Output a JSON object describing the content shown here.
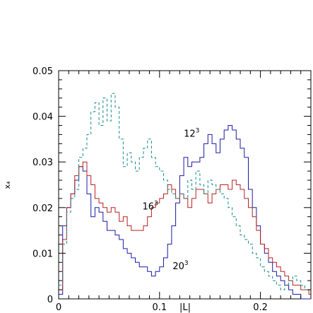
{
  "chart_data": {
    "type": "line",
    "step": true,
    "xlabel": "|L|",
    "ylabel": "x₄",
    "xlim": [
      0,
      0.25
    ],
    "ylim": [
      0,
      0.05
    ],
    "x_ticks": [
      {
        "value": 0,
        "label": "0"
      },
      {
        "value": 0.1,
        "label": "0.1"
      },
      {
        "value": 0.2,
        "label": "0.2"
      }
    ],
    "y_ticks": [
      {
        "value": 0,
        "label": "0"
      },
      {
        "value": 0.01,
        "label": "0.01"
      },
      {
        "value": 0.02,
        "label": "0.02"
      },
      {
        "value": 0.03,
        "label": "0.03"
      },
      {
        "value": 0.04,
        "label": "0.04"
      },
      {
        "value": 0.05,
        "label": "0.05"
      }
    ],
    "grid": false,
    "legend": "none",
    "annotations": [
      {
        "base": "20",
        "sup": "3",
        "x": 0.113,
        "y": 0.0065
      },
      {
        "base": "16",
        "sup": "3",
        "x": 0.083,
        "y": 0.0196
      },
      {
        "base": "12",
        "sup": "3",
        "x": 0.124,
        "y": 0.0355
      }
    ],
    "series": [
      {
        "key": "20",
        "color": "#1a1aa8",
        "style": "solid",
        "x": [
          0.0,
          0.004,
          0.008,
          0.012,
          0.016,
          0.02,
          0.024,
          0.028,
          0.032,
          0.036,
          0.04,
          0.044,
          0.048,
          0.052,
          0.056,
          0.06,
          0.064,
          0.068,
          0.072,
          0.076,
          0.08,
          0.084,
          0.088,
          0.092,
          0.096,
          0.1,
          0.104,
          0.108,
          0.112,
          0.116,
          0.12,
          0.124,
          0.128,
          0.132,
          0.136,
          0.14,
          0.144,
          0.148,
          0.152,
          0.156,
          0.16,
          0.164,
          0.168,
          0.172,
          0.176,
          0.18,
          0.184,
          0.188,
          0.192,
          0.196,
          0.2,
          0.204,
          0.208,
          0.212,
          0.216,
          0.22,
          0.224,
          0.228,
          0.232,
          0.236,
          0.24,
          0.244,
          0.248
        ],
        "y": [
          0.001,
          0.016,
          0.02,
          0.023,
          0.026,
          0.029,
          0.028,
          0.023,
          0.018,
          0.02,
          0.019,
          0.017,
          0.015,
          0.015,
          0.014,
          0.013,
          0.011,
          0.01,
          0.009,
          0.008,
          0.007,
          0.007,
          0.006,
          0.005,
          0.006,
          0.007,
          0.009,
          0.012,
          0.016,
          0.021,
          0.027,
          0.031,
          0.029,
          0.03,
          0.03,
          0.031,
          0.034,
          0.036,
          0.034,
          0.032,
          0.035,
          0.037,
          0.038,
          0.037,
          0.035,
          0.033,
          0.031,
          0.024,
          0.02,
          0.016,
          0.012,
          0.01,
          0.008,
          0.006,
          0.005,
          0.004,
          0.003,
          0.002,
          0.001,
          0.001,
          0.0,
          0.0,
          0.0
        ]
      },
      {
        "key": "16",
        "color": "#b82020",
        "style": "solid",
        "x": [
          0.0,
          0.004,
          0.008,
          0.012,
          0.016,
          0.02,
          0.024,
          0.028,
          0.032,
          0.036,
          0.04,
          0.044,
          0.048,
          0.052,
          0.056,
          0.06,
          0.064,
          0.068,
          0.072,
          0.076,
          0.08,
          0.084,
          0.088,
          0.092,
          0.096,
          0.1,
          0.104,
          0.108,
          0.112,
          0.116,
          0.12,
          0.124,
          0.128,
          0.132,
          0.136,
          0.14,
          0.144,
          0.148,
          0.152,
          0.156,
          0.16,
          0.164,
          0.168,
          0.172,
          0.176,
          0.18,
          0.184,
          0.188,
          0.192,
          0.196,
          0.2,
          0.204,
          0.208,
          0.212,
          0.216,
          0.22,
          0.224,
          0.228,
          0.232,
          0.236,
          0.24,
          0.244,
          0.248
        ],
        "y": [
          0.002,
          0.013,
          0.02,
          0.023,
          0.027,
          0.029,
          0.03,
          0.027,
          0.025,
          0.022,
          0.021,
          0.02,
          0.019,
          0.02,
          0.019,
          0.017,
          0.018,
          0.016,
          0.015,
          0.015,
          0.015,
          0.016,
          0.018,
          0.02,
          0.021,
          0.022,
          0.023,
          0.025,
          0.024,
          0.022,
          0.023,
          0.022,
          0.02,
          0.022,
          0.024,
          0.024,
          0.023,
          0.021,
          0.023,
          0.024,
          0.025,
          0.025,
          0.024,
          0.026,
          0.025,
          0.024,
          0.022,
          0.02,
          0.018,
          0.015,
          0.012,
          0.011,
          0.009,
          0.008,
          0.007,
          0.006,
          0.005,
          0.004,
          0.003,
          0.003,
          0.002,
          0.002,
          0.001
        ]
      },
      {
        "key": "12",
        "color": "#1a8a8a",
        "style": "dashed",
        "x": [
          0.0,
          0.004,
          0.008,
          0.012,
          0.016,
          0.02,
          0.024,
          0.028,
          0.032,
          0.036,
          0.04,
          0.044,
          0.048,
          0.052,
          0.056,
          0.06,
          0.064,
          0.068,
          0.072,
          0.076,
          0.08,
          0.084,
          0.088,
          0.092,
          0.096,
          0.1,
          0.104,
          0.108,
          0.112,
          0.116,
          0.12,
          0.124,
          0.128,
          0.132,
          0.136,
          0.14,
          0.144,
          0.148,
          0.152,
          0.156,
          0.16,
          0.164,
          0.168,
          0.172,
          0.176,
          0.18,
          0.184,
          0.188,
          0.192,
          0.196,
          0.2,
          0.204,
          0.208,
          0.212,
          0.216,
          0.22,
          0.224,
          0.228,
          0.232,
          0.236,
          0.24,
          0.244,
          0.248
        ],
        "y": [
          0.003,
          0.012,
          0.019,
          0.022,
          0.024,
          0.031,
          0.033,
          0.036,
          0.041,
          0.043,
          0.038,
          0.044,
          0.039,
          0.045,
          0.042,
          0.035,
          0.029,
          0.032,
          0.03,
          0.028,
          0.031,
          0.033,
          0.035,
          0.031,
          0.029,
          0.028,
          0.026,
          0.024,
          0.023,
          0.022,
          0.023,
          0.022,
          0.026,
          0.024,
          0.028,
          0.025,
          0.023,
          0.026,
          0.025,
          0.024,
          0.023,
          0.022,
          0.02,
          0.018,
          0.016,
          0.014,
          0.013,
          0.012,
          0.01,
          0.009,
          0.007,
          0.006,
          0.005,
          0.004,
          0.003,
          0.002,
          0.003,
          0.004,
          0.005,
          0.004,
          0.003,
          0.002,
          0.002
        ]
      }
    ]
  }
}
